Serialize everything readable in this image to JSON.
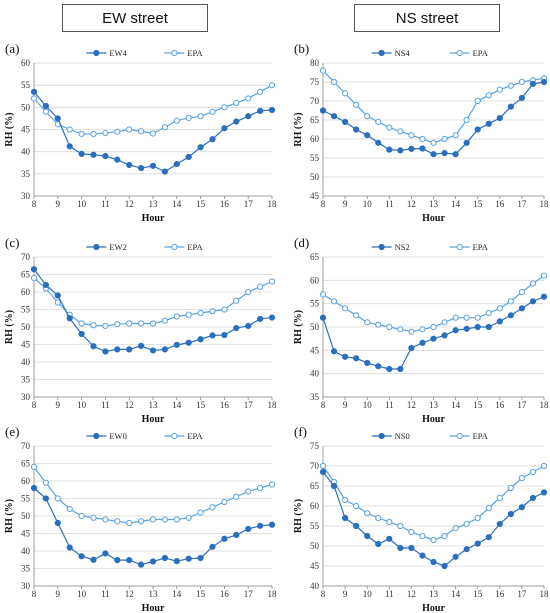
{
  "headers": {
    "left": "EW street",
    "right": "NS street"
  },
  "colors": {
    "series_main": "#2a6fbe",
    "series_epa": "#5ba2e0",
    "axis": "#888888",
    "grid": "#d9d9d9"
  },
  "chart_data": [
    {
      "panel": "(a)",
      "type": "line",
      "xlabel": "Hour",
      "ylabel": "RH (%)",
      "xlim": [
        8,
        18
      ],
      "ylim": [
        30,
        60
      ],
      "yticks": [
        30,
        35,
        40,
        45,
        50,
        55,
        60
      ],
      "xticks": [
        8,
        9,
        10,
        11,
        12,
        13,
        14,
        15,
        16,
        17,
        18
      ],
      "x": [
        8,
        8.5,
        9,
        9.5,
        10,
        10.5,
        11,
        11.5,
        12,
        12.5,
        13,
        13.5,
        14,
        14.5,
        15,
        15.5,
        16,
        16.5,
        17,
        17.5,
        18
      ],
      "series": [
        {
          "name": "EW4",
          "marker": "filled",
          "values": [
            53.5,
            50.3,
            47.5,
            41.2,
            39.5,
            39.3,
            39,
            38.2,
            37,
            36.3,
            36.8,
            35.5,
            37.2,
            38.8,
            41,
            42.8,
            45.3,
            46.8,
            48,
            49.2,
            49.4
          ]
        },
        {
          "name": "EPA",
          "marker": "open",
          "values": [
            52,
            49,
            46.2,
            45,
            44,
            44,
            44.2,
            44.5,
            45,
            44.6,
            44.1,
            45.5,
            47,
            47.6,
            48,
            49,
            50,
            51,
            52,
            53.5,
            55
          ]
        }
      ]
    },
    {
      "panel": "(b)",
      "type": "line",
      "xlabel": "Hour",
      "ylabel": "RH (%)",
      "xlim": [
        8,
        18
      ],
      "ylim": [
        45,
        80
      ],
      "yticks": [
        45,
        50,
        55,
        60,
        65,
        70,
        75,
        80
      ],
      "xticks": [
        8,
        9,
        10,
        11,
        12,
        13,
        14,
        15,
        16,
        17,
        18
      ],
      "x": [
        8,
        8.5,
        9,
        9.5,
        10,
        10.5,
        11,
        11.5,
        12,
        12.5,
        13,
        13.5,
        14,
        14.5,
        15,
        15.5,
        16,
        16.5,
        17,
        17.5,
        18
      ],
      "series": [
        {
          "name": "NS4",
          "marker": "filled",
          "values": [
            67.5,
            66,
            64.5,
            62.5,
            61,
            59,
            57.2,
            57,
            57.4,
            57.5,
            56,
            56.3,
            56,
            59,
            62.5,
            64,
            65.5,
            68.5,
            70.8,
            74.5,
            75
          ]
        },
        {
          "name": "EPA",
          "marker": "open",
          "values": [
            78,
            75,
            72,
            69,
            66,
            64.5,
            63,
            62,
            61,
            60,
            59,
            60,
            61,
            65,
            70,
            71.5,
            73,
            74,
            75,
            75.5,
            76
          ]
        }
      ]
    },
    {
      "panel": "(c)",
      "type": "line",
      "xlabel": "Hour",
      "ylabel": "RH (%)",
      "xlim": [
        8,
        18
      ],
      "ylim": [
        30,
        70
      ],
      "yticks": [
        30,
        35,
        40,
        45,
        50,
        55,
        60,
        65,
        70
      ],
      "xticks": [
        8,
        9,
        10,
        11,
        12,
        13,
        14,
        15,
        16,
        17,
        18
      ],
      "x": [
        8,
        8.5,
        9,
        9.5,
        10,
        10.5,
        11,
        11.5,
        12,
        12.5,
        13,
        13.5,
        14,
        14.5,
        15,
        15.5,
        16,
        16.5,
        17,
        17.5,
        18
      ],
      "series": [
        {
          "name": "EW2",
          "marker": "filled",
          "values": [
            66.5,
            62,
            59,
            52.5,
            48,
            44.5,
            43,
            43.6,
            43.6,
            44.6,
            43.3,
            43.6,
            44.9,
            45.5,
            46.5,
            47.6,
            47.7,
            49.7,
            50.3,
            52.3,
            52.7
          ]
        },
        {
          "name": "EPA",
          "marker": "open",
          "values": [
            64,
            61,
            57,
            53.5,
            51,
            50.5,
            50.3,
            50.8,
            51,
            51,
            51,
            51.8,
            53,
            53.5,
            54,
            54.5,
            55,
            57.5,
            60,
            61.5,
            63
          ]
        }
      ]
    },
    {
      "panel": "(d)",
      "type": "line",
      "xlabel": "Hour",
      "ylabel": "RH (%)",
      "xlim": [
        8,
        18
      ],
      "ylim": [
        35,
        65
      ],
      "yticks": [
        35,
        40,
        45,
        50,
        55,
        60,
        65
      ],
      "xticks": [
        8,
        9,
        10,
        11,
        12,
        13,
        14,
        15,
        16,
        17,
        18
      ],
      "x": [
        8,
        8.5,
        9,
        9.5,
        10,
        10.5,
        11,
        11.5,
        12,
        12.5,
        13,
        13.5,
        14,
        14.5,
        15,
        15.5,
        16,
        16.5,
        17,
        17.5,
        18
      ],
      "series": [
        {
          "name": "NS2",
          "marker": "filled",
          "values": [
            52,
            44.8,
            43.6,
            43.3,
            42.3,
            41.6,
            41,
            41,
            45.5,
            46.6,
            47.5,
            48.2,
            49.3,
            49.6,
            50,
            50,
            51.2,
            52.5,
            54,
            55.5,
            56.5
          ]
        },
        {
          "name": "EPA",
          "marker": "open",
          "values": [
            57,
            55.5,
            54,
            52.5,
            51,
            50.5,
            50,
            49.5,
            49,
            49.5,
            50,
            51,
            52,
            52,
            52,
            53,
            54,
            55.5,
            57.5,
            59.3,
            61
          ]
        }
      ]
    },
    {
      "panel": "(e)",
      "type": "line",
      "xlabel": "Hour",
      "ylabel": "RH (%)",
      "xlim": [
        8,
        18
      ],
      "ylim": [
        30,
        70
      ],
      "yticks": [
        30,
        35,
        40,
        45,
        50,
        55,
        60,
        65,
        70
      ],
      "xticks": [
        8,
        9,
        10,
        11,
        12,
        13,
        14,
        15,
        16,
        17,
        18
      ],
      "x": [
        8,
        8.5,
        9,
        9.5,
        10,
        10.5,
        11,
        11.5,
        12,
        12.5,
        13,
        13.5,
        14,
        14.5,
        15,
        15.5,
        16,
        16.5,
        17,
        17.5,
        18
      ],
      "series": [
        {
          "name": "EW0",
          "marker": "filled",
          "values": [
            58,
            55,
            48,
            41,
            38.5,
            37.5,
            39.3,
            37.4,
            37.4,
            36.1,
            37,
            38,
            37.1,
            37.8,
            38,
            41.2,
            43.5,
            44.6,
            46.3,
            47.2,
            47.5
          ]
        },
        {
          "name": "EPA",
          "marker": "open",
          "values": [
            64,
            59.5,
            55,
            52,
            50,
            49.5,
            49,
            48.5,
            48,
            48.5,
            49,
            49,
            49,
            49.5,
            51,
            52.5,
            54,
            55.5,
            57,
            58,
            59
          ]
        }
      ]
    },
    {
      "panel": "(f)",
      "type": "line",
      "xlabel": "Hour",
      "ylabel": "RH (%)",
      "xlim": [
        8,
        18
      ],
      "ylim": [
        40,
        75
      ],
      "yticks": [
        40,
        45,
        50,
        55,
        60,
        65,
        70,
        75
      ],
      "xticks": [
        8,
        9,
        10,
        11,
        12,
        13,
        14,
        15,
        16,
        17,
        18
      ],
      "x": [
        8,
        8.5,
        9,
        9.5,
        10,
        10.5,
        11,
        11.5,
        12,
        12.5,
        13,
        13.5,
        14,
        14.5,
        15,
        15.5,
        16,
        16.5,
        17,
        17.5,
        18
      ],
      "series": [
        {
          "name": "NS0",
          "marker": "filled",
          "values": [
            68.5,
            65,
            57,
            55,
            52.5,
            50.5,
            51.8,
            49.5,
            49.5,
            47.6,
            46,
            45,
            47.3,
            49.2,
            50.6,
            52.2,
            55.5,
            58,
            59.7,
            62,
            63.4
          ]
        },
        {
          "name": "EPA",
          "marker": "open",
          "values": [
            70,
            66,
            61.5,
            60,
            58.2,
            57,
            56,
            55,
            53.5,
            52.5,
            51.5,
            52.5,
            54.5,
            55.5,
            57,
            59.5,
            62,
            64.5,
            67,
            68.5,
            70
          ]
        }
      ]
    }
  ]
}
